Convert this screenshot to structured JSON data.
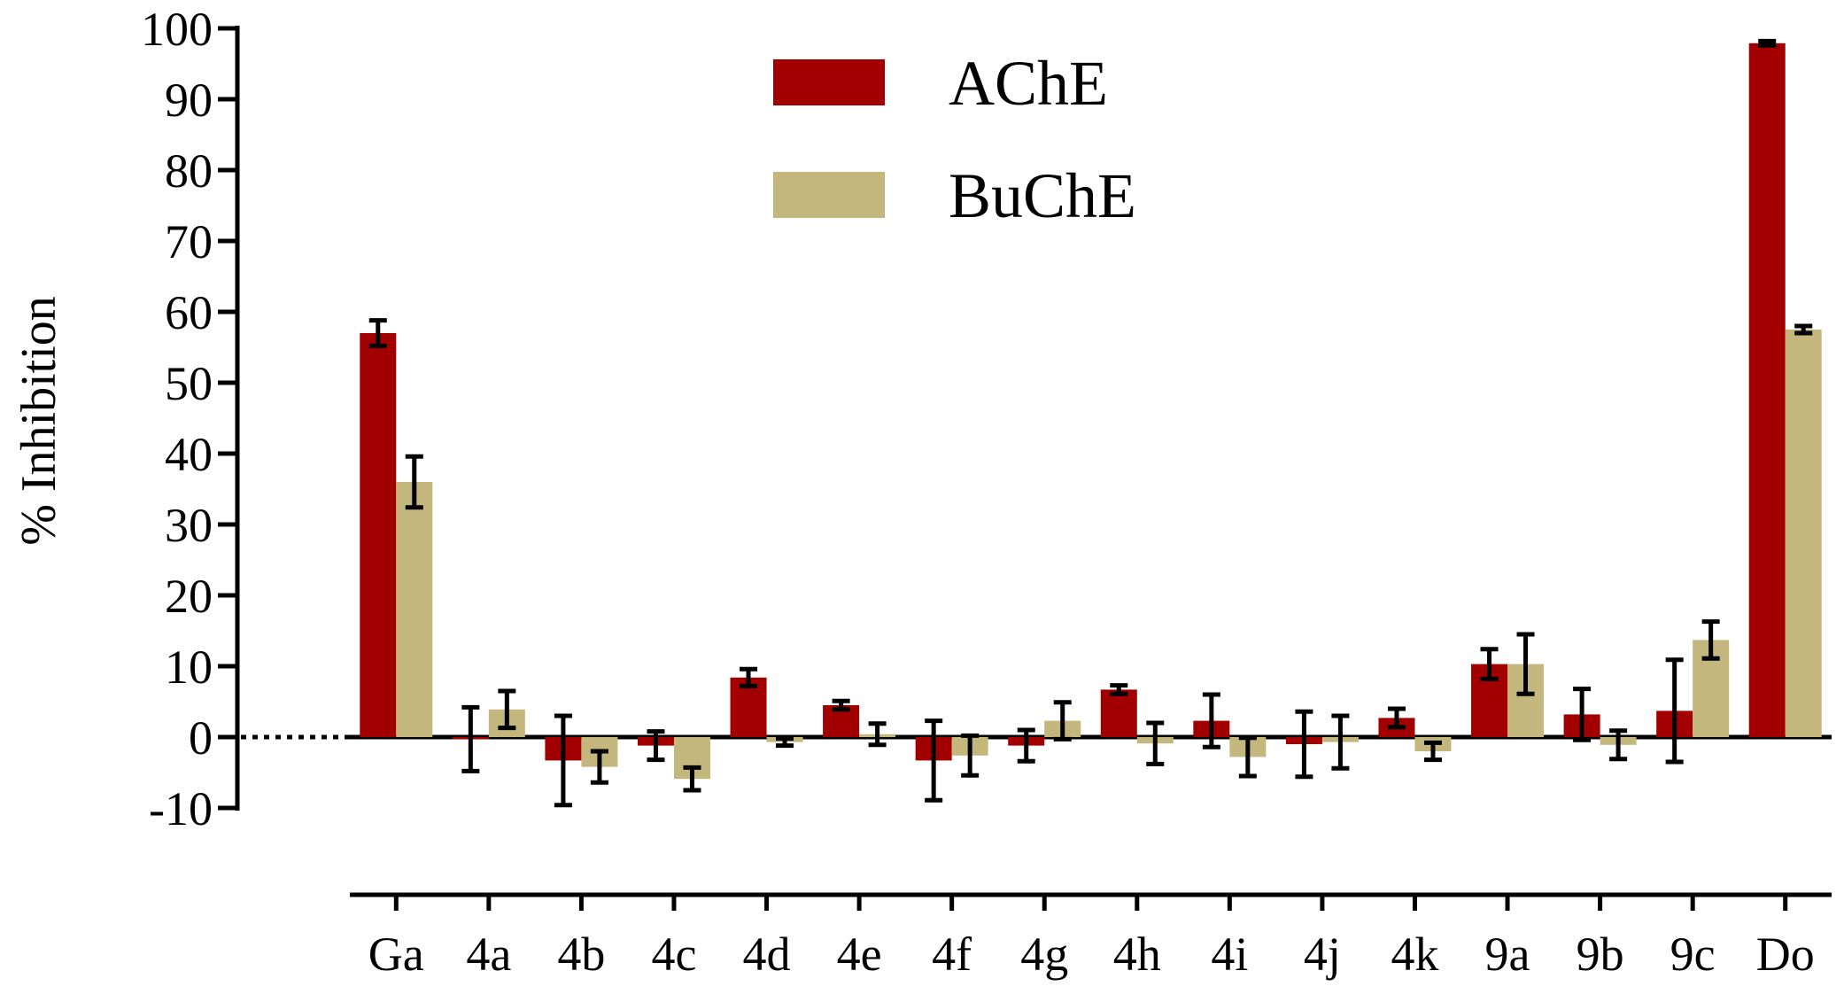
{
  "chart_data": {
    "type": "bar",
    "title": "",
    "xlabel": "",
    "ylabel": "% Inhibition",
    "ylim": [
      -10,
      100
    ],
    "yticks": [
      100,
      90,
      80,
      70,
      60,
      50,
      40,
      30,
      20,
      10,
      0,
      -10
    ],
    "yticklabels": [
      "100",
      "90",
      "80",
      "70",
      "60",
      "50",
      "40",
      "30",
      "20",
      "10",
      "0",
      "-10"
    ],
    "grid": false,
    "legend_position": "top-center",
    "zero_line": "dotted-left",
    "categories": [
      "Ga",
      "4a",
      "4b",
      "4c",
      "4d",
      "4e",
      "4f",
      "4g",
      "4h",
      "4i",
      "4j",
      "4k",
      "9a",
      "9b",
      "9c",
      "Do"
    ],
    "series": [
      {
        "name": "AChE",
        "color": "#a20000",
        "values": [
          57,
          -0.3,
          -3.3,
          -1.2,
          8.4,
          4.5,
          -3.3,
          -1.2,
          6.7,
          2.3,
          -1.0,
          2.7,
          10.3,
          3.2,
          3.7,
          97.9
        ],
        "errors": [
          1.8,
          4.5,
          6.3,
          2.0,
          1.2,
          0.6,
          5.6,
          2.2,
          0.6,
          3.7,
          4.6,
          1.3,
          2.1,
          3.6,
          7.2,
          0.3
        ]
      },
      {
        "name": "BuChE",
        "color": "#c3b77d",
        "values": [
          36,
          3.9,
          -4.2,
          -5.9,
          -0.7,
          0.4,
          -2.6,
          2.3,
          -0.9,
          -2.8,
          -0.7,
          -2.0,
          10.3,
          -1.1,
          13.7,
          57.5
        ],
        "errors": [
          3.6,
          2.6,
          2.2,
          1.6,
          0.5,
          1.5,
          2.8,
          2.6,
          2.9,
          2.7,
          3.7,
          1.2,
          4.2,
          2.0,
          2.6,
          0.5
        ]
      }
    ]
  }
}
